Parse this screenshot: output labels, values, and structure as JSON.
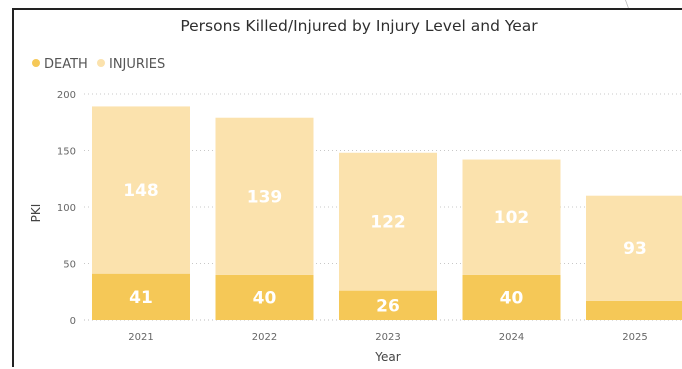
{
  "chart_data": {
    "type": "bar",
    "stacked": true,
    "title": "Persons Killed/Injured by Injury Level and Year",
    "xlabel": "Year",
    "ylabel": "PKI",
    "ylim": [
      0,
      200
    ],
    "yticks": [
      "0",
      "50",
      "100",
      "150",
      "200"
    ],
    "categories": [
      "2021",
      "2022",
      "2023",
      "2024",
      "2025"
    ],
    "series": [
      {
        "name": "DEATH",
        "color": "#f5c857",
        "values": [
          41,
          40,
          26,
          40,
          17
        ],
        "labels": [
          "41",
          "40",
          "26",
          "40",
          ""
        ]
      },
      {
        "name": "INJURIES",
        "color": "#fbe2ad",
        "values": [
          148,
          139,
          122,
          102,
          93
        ],
        "labels": [
          "148",
          "139",
          "122",
          "102",
          "93"
        ]
      }
    ],
    "legend_position": "top-left",
    "grid": true
  }
}
